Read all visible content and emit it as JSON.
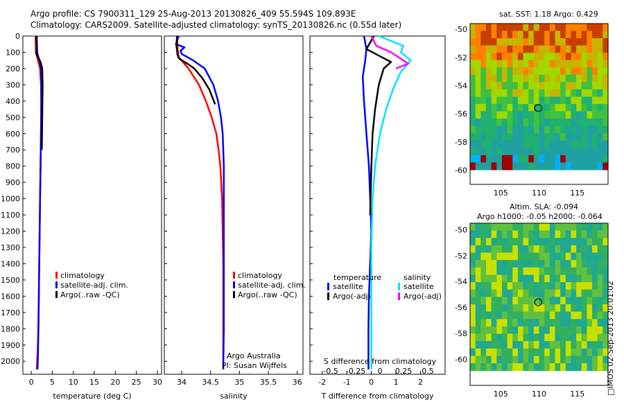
{
  "header": {
    "line1": "Argo profile: CS 7900311_129 25-Aug-2013 20130826_409 55.594S 109.893E",
    "line2": "Climatology: CARS2009. Satellite-adjusted climatology: synTS_20130826.nc (0.55d later)"
  },
  "colors": {
    "climatology": "#ff0000",
    "satellite": "#0000ff",
    "argo": "#000000",
    "sal_satellite": "#00e5ff",
    "sal_argo": "#ff00ff"
  },
  "chart_data": [
    {
      "type": "line",
      "xlabel": "temperature (deg C)",
      "ylabel": "",
      "xlim": [
        -2,
        31
      ],
      "ylim": [
        2080,
        0
      ],
      "xticks": [
        "0",
        "5",
        "10",
        "15",
        "20",
        "25",
        "30"
      ],
      "yticks": [
        "0",
        "100",
        "200",
        "300",
        "400",
        "500",
        "600",
        "700",
        "800",
        "900",
        "1000",
        "1100",
        "1200",
        "1300",
        "1400",
        "1500",
        "1600",
        "1700",
        "1800",
        "1900",
        "2000"
      ],
      "legend": [
        "climatology",
        "satellite-adj. clim.",
        "Argo(..raw -QC)"
      ],
      "legend_position": "lower-center",
      "series": [
        {
          "name": "climatology",
          "color": "#ff0000",
          "x": [
            1.0,
            1.1,
            1.6,
            2.1,
            2.3,
            2.35,
            2.35,
            2.3,
            2.25,
            2.2,
            2.1,
            2.0,
            1.9,
            1.8,
            1.7,
            1.5,
            1.3
          ],
          "y": [
            0,
            100,
            150,
            200,
            300,
            400,
            500,
            600,
            700,
            800,
            1000,
            1200,
            1400,
            1600,
            1800,
            1950,
            2050
          ]
        },
        {
          "name": "satellite-adj. clim.",
          "color": "#0000ff",
          "x": [
            1.3,
            1.4,
            1.9,
            2.3,
            2.4,
            2.4,
            2.35,
            2.3,
            2.25,
            2.2,
            2.1,
            2.0,
            1.9,
            1.8,
            1.7,
            1.6,
            1.5
          ],
          "y": [
            0,
            100,
            150,
            200,
            300,
            400,
            500,
            600,
            700,
            800,
            1000,
            1200,
            1400,
            1600,
            1800,
            1950,
            2050
          ]
        },
        {
          "name": "Argo(..raw -QC)",
          "color": "#000000",
          "x": [
            1.2,
            1.3,
            1.2,
            2.2,
            2.6,
            2.7,
            2.6,
            2.5
          ],
          "y": [
            0,
            60,
            110,
            160,
            200,
            300,
            500,
            700
          ]
        }
      ]
    },
    {
      "type": "line",
      "xlabel": "salinity",
      "ylabel": "",
      "xlim": [
        33.7,
        36.1
      ],
      "ylim": [
        2080,
        0
      ],
      "xticks": [
        "34",
        "34.5",
        "35",
        "35.5",
        "36"
      ],
      "legend": [
        "climatology",
        "satellite-adj. clim.",
        "Argo(..raw -QC)"
      ],
      "legend_position": "lower-center",
      "annotation": [
        "Argo Australia",
        "PI: Susan Wijffels"
      ],
      "series": [
        {
          "name": "climatology",
          "color": "#ff0000",
          "x": [
            33.92,
            33.93,
            33.95,
            34.12,
            34.3,
            34.42,
            34.52,
            34.6,
            34.64,
            34.67,
            34.7,
            34.71,
            34.72,
            34.72,
            34.72,
            34.72,
            34.72
          ],
          "y": [
            0,
            80,
            130,
            200,
            300,
            400,
            500,
            600,
            700,
            800,
            1000,
            1200,
            1400,
            1600,
            1800,
            1950,
            2050
          ]
        },
        {
          "name": "satellite-adj. clim.",
          "color": "#0000ff",
          "x": [
            33.95,
            33.9,
            34.05,
            33.98,
            34.0,
            34.2,
            34.4,
            34.55,
            34.63,
            34.68,
            34.71,
            34.72,
            34.73,
            34.73,
            34.73,
            34.73,
            34.73,
            34.72
          ],
          "y": [
            0,
            50,
            70,
            90,
            110,
            150,
            200,
            300,
            400,
            500,
            600,
            700,
            800,
            1000,
            1200,
            1400,
            1800,
            2050
          ]
        },
        {
          "name": "Argo(..raw -QC)",
          "color": "#000000",
          "x": [
            33.92,
            33.91,
            33.93,
            33.96,
            34.1,
            34.22,
            34.36,
            34.48,
            34.58
          ],
          "y": [
            0,
            60,
            120,
            140,
            170,
            200,
            260,
            330,
            420
          ]
        }
      ]
    },
    {
      "type": "line",
      "xlabel": "T difference from climatology",
      "xlabel_top": "S difference from climatology",
      "xlim": [
        -2.5,
        3.0
      ],
      "ylim": [
        2080,
        0
      ],
      "xticks": [
        "-2",
        "-1",
        "0",
        "1",
        "2"
      ],
      "xticks_top": [
        "-0.5",
        "-0.25",
        "0",
        "0.25",
        "0.5"
      ],
      "legend_titles": [
        "temperature",
        "salinity"
      ],
      "legend": [
        "satellite",
        "Argo(-adj)",
        "satellite",
        "Argo(-adj)"
      ],
      "legend_position": "lower-center",
      "series": [
        {
          "name": "satellite",
          "color": "#0000ff",
          "x": [
            -0.3,
            -0.2,
            -0.25,
            -0.35,
            -0.3,
            -0.2,
            -0.1,
            -0.05,
            0.0,
            -0.05,
            -0.1,
            -0.12,
            -0.12
          ],
          "y": [
            0,
            80,
            150,
            250,
            400,
            600,
            800,
            1000,
            1200,
            1400,
            1600,
            1800,
            2050
          ]
        },
        {
          "name": "Argo(-adj)",
          "color": "#000000",
          "x": [
            0.1,
            -0.2,
            0.3,
            0.8,
            0.5,
            0.3,
            0.15,
            0.05,
            0.0,
            -0.05
          ],
          "y": [
            0,
            80,
            120,
            160,
            200,
            300,
            450,
            600,
            800,
            1100
          ]
        },
        {
          "name": "satellite",
          "color": "#00e5ff",
          "x": [
            0.3,
            1.3,
            1.2,
            1.6,
            1.2,
            0.9,
            0.6,
            0.35,
            0.15,
            0.05,
            0.0,
            0.0,
            0.0
          ],
          "y": [
            0,
            60,
            100,
            150,
            220,
            320,
            450,
            600,
            800,
            1000,
            1300,
            1600,
            2050
          ]
        },
        {
          "name": "Argo(-adj)",
          "color": "#ff00ff",
          "x": [
            0.0,
            0.2,
            0.8,
            1.2,
            1.5,
            1.0
          ],
          "y": [
            0,
            60,
            100,
            140,
            170,
            200
          ]
        }
      ]
    },
    {
      "type": "heatmap",
      "title": "sat. SST: 1.18 Argo: 0.429",
      "xlim": [
        101,
        119
      ],
      "ylim": [
        -61,
        -49.6
      ],
      "xticks": [
        "105",
        "110",
        "115"
      ],
      "yticks": [
        "-50",
        "-52",
        "-54",
        "-56",
        "-58",
        "-60"
      ],
      "marker": {
        "lon": 109.893,
        "lat": -55.594
      }
    },
    {
      "type": "heatmap",
      "title": "Altim. SLA: -0.094",
      "subtitle": "Argo h1000: -0.05 h2000: -0.064",
      "xlim": [
        101,
        119
      ],
      "ylim": [
        -62,
        -49.5
      ],
      "xticks": [
        "105",
        "110",
        "115"
      ],
      "yticks": [
        "-50",
        "-52",
        "-54",
        "-56",
        "-58",
        "-60"
      ],
      "marker": {
        "lon": 109.893,
        "lat": -55.594
      }
    }
  ],
  "side_text": "IMOS 02-Sep-2013 20:01:02"
}
